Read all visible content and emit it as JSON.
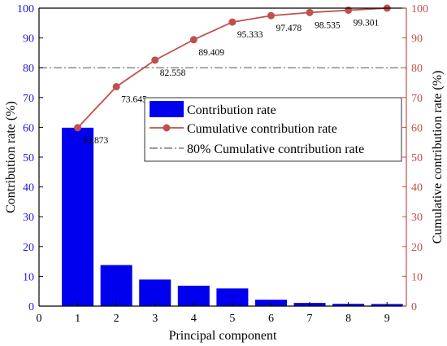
{
  "chart_data": {
    "type": "bar+line",
    "categories": [
      "1",
      "2",
      "3",
      "4",
      "5",
      "6",
      "7",
      "8",
      "9"
    ],
    "x_ticks": [
      "0",
      "1",
      "2",
      "3",
      "4",
      "5",
      "6",
      "7",
      "8",
      "9"
    ],
    "xlabel": "Principal component",
    "ylabel_left": "Contribution rate (%)",
    "ylabel_right": "Cumulative contribution rate (%)",
    "ylim": [
      0,
      100
    ],
    "y_ticks": [
      "0",
      "10",
      "20",
      "30",
      "40",
      "50",
      "60",
      "70",
      "80",
      "90",
      "100"
    ],
    "series": [
      {
        "name": "Contribution rate",
        "type": "bar",
        "color": "#0000ee",
        "values": [
          59.873,
          13.772,
          8.913,
          6.851,
          5.924,
          2.145,
          1.057,
          0.766,
          0.699
        ]
      },
      {
        "name": "Cumulative contribution rate",
        "type": "line",
        "color": "#c0504d",
        "values": [
          59.873,
          73.645,
          82.558,
          89.409,
          95.333,
          97.478,
          98.535,
          99.301,
          100
        ],
        "labels": [
          "59.873",
          "73.645",
          "82.558",
          "89.409",
          "95.333",
          "97.478",
          "98.535",
          "99.301",
          ""
        ]
      }
    ],
    "reference_line": {
      "name": "80% Cumulative contribution rate",
      "value": 80,
      "style": "dash-dot",
      "color": "#666666"
    },
    "legend_position": "center-right"
  }
}
